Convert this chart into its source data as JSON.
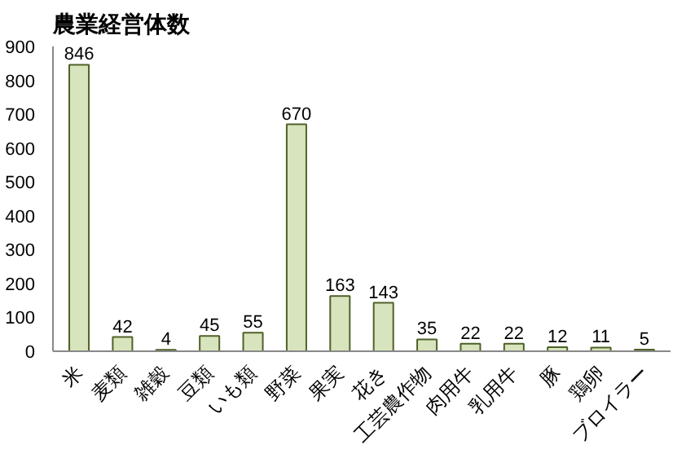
{
  "chart_data": {
    "type": "bar",
    "title": "農業経営体数",
    "categories": [
      "米",
      "麦類",
      "雑穀",
      "豆類",
      "いも類",
      "野菜",
      "果実",
      "花き",
      "工芸農作物",
      "肉用牛",
      "乳用牛",
      "豚",
      "鶏卵",
      "ブロイラー"
    ],
    "values": [
      846,
      42,
      4,
      45,
      55,
      670,
      163,
      143,
      35,
      22,
      22,
      12,
      11,
      5
    ],
    "color": "#d7e4bd",
    "ylim": [
      0,
      900
    ],
    "yticks": [
      0,
      100,
      200,
      300,
      400,
      500,
      600,
      700,
      800,
      900
    ],
    "data_labels": true,
    "grid": false
  }
}
